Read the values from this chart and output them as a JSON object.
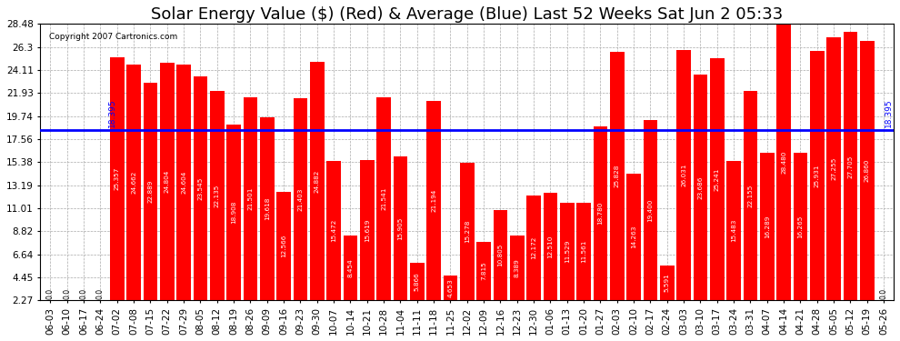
{
  "title": "Solar Energy Value ($) (Red) & Average (Blue) Last 52 Weeks Sat Jun 2 05:33",
  "copyright": "Copyright 2007 Cartronics.com",
  "average_line": 18.395,
  "average_label": "18.395",
  "bar_color": "#ff0000",
  "average_color": "#0000ff",
  "background_color": "#ffffff",
  "plot_bg_color": "#ffffff",
  "grid_color": "#aaaaaa",
  "ylim": [
    2.27,
    28.48
  ],
  "yticks": [
    2.27,
    4.45,
    6.64,
    8.82,
    11.01,
    13.19,
    15.38,
    17.56,
    19.74,
    21.93,
    24.11,
    26.3,
    28.48
  ],
  "categories": [
    "06-03",
    "06-10",
    "06-17",
    "06-24",
    "07-02",
    "07-08",
    "07-15",
    "07-22",
    "07-29",
    "08-05",
    "08-12",
    "08-19",
    "08-26",
    "09-09",
    "09-16",
    "09-23",
    "09-30",
    "10-07",
    "10-14",
    "10-21",
    "10-28",
    "11-04",
    "11-11",
    "11-18",
    "11-25",
    "12-02",
    "12-09",
    "12-16",
    "12-23",
    "12-30",
    "01-06",
    "01-13",
    "01-20",
    "01-27",
    "02-03",
    "02-10",
    "02-17",
    "02-24",
    "03-03",
    "03-10",
    "03-17",
    "03-24",
    "03-31",
    "04-07",
    "04-14",
    "04-21",
    "04-28",
    "05-05",
    "05-12",
    "05-19",
    "05-26"
  ],
  "values": [
    0.0,
    0.0,
    0.0,
    0.0,
    25.357,
    24.662,
    22.889,
    24.804,
    24.604,
    23.545,
    22.135,
    18.908,
    21.501,
    19.618,
    12.566,
    21.403,
    24.882,
    15.472,
    8.454,
    15.619,
    21.541,
    15.905,
    5.866,
    21.194,
    4.653,
    15.278,
    7.815,
    10.805,
    8.389,
    12.172,
    12.51,
    11.529,
    11.561,
    18.78,
    25.828,
    14.263,
    19.4,
    5.591,
    26.031,
    23.686,
    25.241,
    15.483,
    22.155,
    16.289,
    28.48,
    16.265,
    25.931,
    27.255,
    27.705,
    26.86,
    0.0
  ],
  "title_fontsize": 13,
  "tick_fontsize": 7.5,
  "label_fontsize": 7
}
